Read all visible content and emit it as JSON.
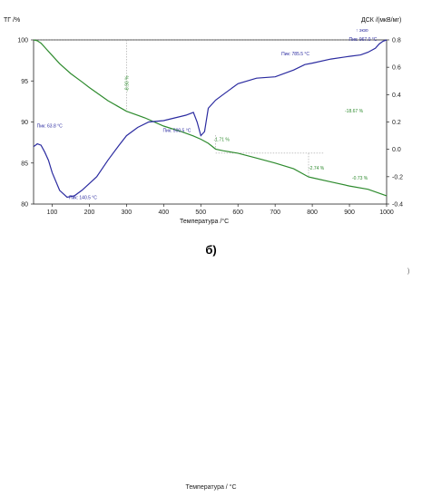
{
  "chart_data": {
    "type": "line",
    "title": "",
    "xlabel": "Температура /°С",
    "ylabel_left": "ТГ /%",
    "ylabel_right": "ДСК /(мкВ/мг)",
    "xlim": [
      50,
      1000
    ],
    "ylim_left": [
      80,
      100
    ],
    "ylim_right": [
      -0.4,
      0.8
    ],
    "x_ticks": [
      "100",
      "200",
      "300",
      "400",
      "500",
      "600",
      "700",
      "800",
      "900",
      "1000"
    ],
    "y_left_ticks": [
      "100",
      "95",
      "90",
      "85",
      "80"
    ],
    "y_right_ticks": [
      "0.8",
      "0.6",
      "0.4",
      "0.2",
      "0.0",
      "-0.2",
      "-0.4"
    ],
    "legend_text": "↑ экзо",
    "series": [
      {
        "axis": "left",
        "color": "#2e8b2e",
        "x": [
          50,
          60,
          70,
          80,
          100,
          120,
          150,
          180,
          200,
          250,
          300,
          350,
          400,
          450,
          480,
          500,
          520,
          540,
          560,
          600,
          650,
          700,
          750,
          790,
          800,
          850,
          900,
          950,
          1000
        ],
        "y": [
          100,
          99.9,
          99.6,
          99.1,
          98.1,
          97.1,
          95.9,
          94.9,
          94.2,
          92.6,
          91.3,
          90.5,
          89.5,
          88.8,
          88.3,
          87.9,
          87.4,
          86.7,
          86.5,
          86.2,
          85.6,
          85.0,
          84.3,
          83.3,
          83.2,
          82.7,
          82.2,
          81.8,
          81.0
        ]
      },
      {
        "axis": "right",
        "color": "#2b2ba0",
        "x": [
          50,
          60,
          70,
          80,
          90,
          100,
          120,
          140,
          160,
          180,
          200,
          220,
          250,
          280,
          300,
          330,
          360,
          400,
          430,
          460,
          480,
          490,
          500,
          510,
          520,
          540,
          560,
          600,
          650,
          700,
          750,
          780,
          800,
          850,
          900,
          930,
          950,
          970,
          980,
          990,
          1000
        ],
        "y": [
          0.02,
          0.04,
          0.03,
          -0.02,
          -0.08,
          -0.17,
          -0.3,
          -0.35,
          -0.34,
          -0.3,
          -0.25,
          -0.2,
          -0.08,
          0.03,
          0.1,
          0.16,
          0.2,
          0.21,
          0.23,
          0.25,
          0.27,
          0.2,
          0.1,
          0.13,
          0.3,
          0.36,
          0.4,
          0.48,
          0.52,
          0.53,
          0.58,
          0.62,
          0.63,
          0.66,
          0.68,
          0.69,
          0.71,
          0.74,
          0.77,
          0.79,
          0.8
        ]
      }
    ],
    "annotations": [
      {
        "text": "Пик: 63.8 °С",
        "x": 63.8,
        "axis": "right",
        "color": "#2b2ba0"
      },
      {
        "text": "Пик: 140.5 °С",
        "x": 140.5,
        "axis": "right",
        "color": "#2b2ba0"
      },
      {
        "text": "Пик: 500.5 °С",
        "x": 500.5,
        "axis": "right",
        "color": "#2b2ba0"
      },
      {
        "text": "Пик: 785.5 °С",
        "x": 785.5,
        "axis": "right",
        "color": "#2b2ba0"
      },
      {
        "text": "Пик: 967.0 °С",
        "x": 967.0,
        "axis": "right",
        "color": "#2b2ba0"
      },
      {
        "text": "-8.90 %",
        "x": 300,
        "axis": "left",
        "color": "#2e8b2e"
      },
      {
        "text": "-1.71 %",
        "x": 540,
        "axis": "left",
        "color": "#2e8b2e"
      },
      {
        "text": "-2.74 %",
        "x": 790,
        "axis": "left",
        "color": "#2e8b2e"
      },
      {
        "text": "-0.73 %",
        "x": 1000,
        "axis": "left",
        "color": "#2e8b2e"
      },
      {
        "text": "-18.67 %",
        "x": 1000,
        "axis": "left",
        "color": "#2e8b2e"
      }
    ]
  },
  "caption": "б)",
  "lower_axis_label": "Температура / °С",
  "edge_mark": ")"
}
